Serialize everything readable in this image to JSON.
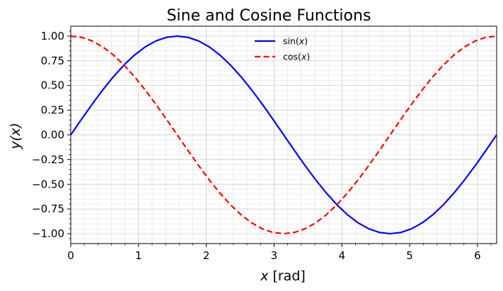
{
  "chart_data": {
    "type": "line",
    "title": "Sine and Cosine Functions",
    "xlabel_var": "x",
    "xlabel_unit": " [rad]",
    "ylabel": "y(x)",
    "xlim": [
      0,
      6.2832
    ],
    "ylim": [
      -1.1,
      1.1
    ],
    "x_ticks": [
      0,
      1,
      2,
      3,
      4,
      5,
      6
    ],
    "x_tick_labels": [
      "0",
      "1",
      "2",
      "3",
      "4",
      "5",
      "6"
    ],
    "y_ticks": [
      -1.0,
      -0.75,
      -0.5,
      -0.25,
      0.0,
      0.25,
      0.5,
      0.75,
      1.0
    ],
    "y_tick_labels": [
      "−1.00",
      "−0.75",
      "−0.50",
      "−0.25",
      "0.00",
      "0.25",
      "0.50",
      "0.75",
      "1.00"
    ],
    "grid": "major and minor",
    "legend_position": "top-center",
    "series": [
      {
        "name": "sin(x)",
        "legend_func": "sin(",
        "legend_var": "x",
        "legend_close": ")",
        "color": "#0000ff",
        "style": "solid",
        "x": [
          0,
          0.1571,
          0.3142,
          0.4712,
          0.6283,
          0.7854,
          0.9425,
          1.0996,
          1.2566,
          1.4137,
          1.5708,
          1.7279,
          1.885,
          2.042,
          2.1991,
          2.3562,
          2.5133,
          2.6704,
          2.8274,
          2.9845,
          3.1416,
          3.2987,
          3.4558,
          3.6128,
          3.7699,
          3.927,
          4.0841,
          4.2412,
          4.3982,
          4.5553,
          4.7124,
          4.8695,
          5.0265,
          5.1836,
          5.3407,
          5.4978,
          5.6549,
          5.8119,
          5.969,
          6.1261,
          6.2832
        ],
        "y": [
          0,
          0.1564,
          0.309,
          0.454,
          0.5878,
          0.7071,
          0.809,
          0.891,
          0.9511,
          0.9877,
          1.0,
          0.9877,
          0.9511,
          0.891,
          0.809,
          0.7071,
          0.5878,
          0.454,
          0.309,
          0.1564,
          0,
          -0.1564,
          -0.309,
          -0.454,
          -0.5878,
          -0.7071,
          -0.809,
          -0.891,
          -0.9511,
          -0.9877,
          -1.0,
          -0.9877,
          -0.9511,
          -0.891,
          -0.809,
          -0.7071,
          -0.5878,
          -0.454,
          -0.309,
          -0.1564,
          0
        ]
      },
      {
        "name": "cos(x)",
        "legend_func": "cos(",
        "legend_var": "x",
        "legend_close": ")",
        "color": "#ff0000",
        "style": "dashed",
        "x": [
          0,
          0.1571,
          0.3142,
          0.4712,
          0.6283,
          0.7854,
          0.9425,
          1.0996,
          1.2566,
          1.4137,
          1.5708,
          1.7279,
          1.885,
          2.042,
          2.1991,
          2.3562,
          2.5133,
          2.6704,
          2.8274,
          2.9845,
          3.1416,
          3.2987,
          3.4558,
          3.6128,
          3.7699,
          3.927,
          4.0841,
          4.2412,
          4.3982,
          4.5553,
          4.7124,
          4.8695,
          5.0265,
          5.1836,
          5.3407,
          5.4978,
          5.6549,
          5.8119,
          5.969,
          6.1261,
          6.2832
        ],
        "y": [
          1.0,
          0.9877,
          0.9511,
          0.891,
          0.809,
          0.7071,
          0.5878,
          0.454,
          0.309,
          0.1564,
          0,
          -0.1564,
          -0.309,
          -0.454,
          -0.5878,
          -0.7071,
          -0.809,
          -0.891,
          -0.9511,
          -0.9877,
          -1.0,
          -0.9877,
          -0.9511,
          -0.891,
          -0.809,
          -0.7071,
          -0.5878,
          -0.454,
          -0.309,
          -0.1564,
          0,
          0.1564,
          0.309,
          0.454,
          0.5878,
          0.7071,
          0.809,
          0.891,
          0.9511,
          0.9877,
          1.0
        ]
      }
    ]
  }
}
